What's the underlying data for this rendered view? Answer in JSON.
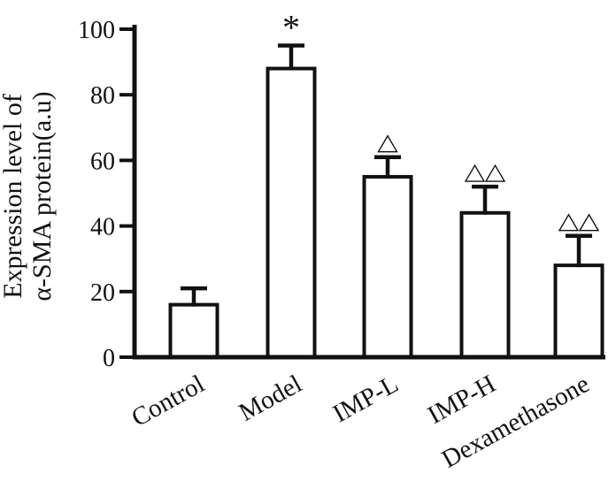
{
  "colors": {
    "ink": "#111111",
    "background": "#ffffff",
    "bar_fill": "#ffffff"
  },
  "chart_data": {
    "type": "bar",
    "title": "",
    "xlabel": "",
    "ylabel_line1": "Expression level of",
    "ylabel_line2": "α-SMA protein(a.u)",
    "categories": [
      "Control",
      "Model",
      "IMP-L",
      "IMP-H",
      "Dexamethasone"
    ],
    "values": [
      16,
      88,
      55,
      44,
      28
    ],
    "errors": [
      5,
      7,
      6,
      8,
      9
    ],
    "annotations": [
      "",
      "*",
      "△",
      "△△",
      "△△"
    ],
    "yticks": [
      0,
      20,
      40,
      60,
      80,
      100
    ],
    "ylim": [
      0,
      100
    ],
    "grid": "off",
    "legend": "none",
    "error_bars": "upper-only",
    "x_tick_label_rotation_deg": -29
  }
}
